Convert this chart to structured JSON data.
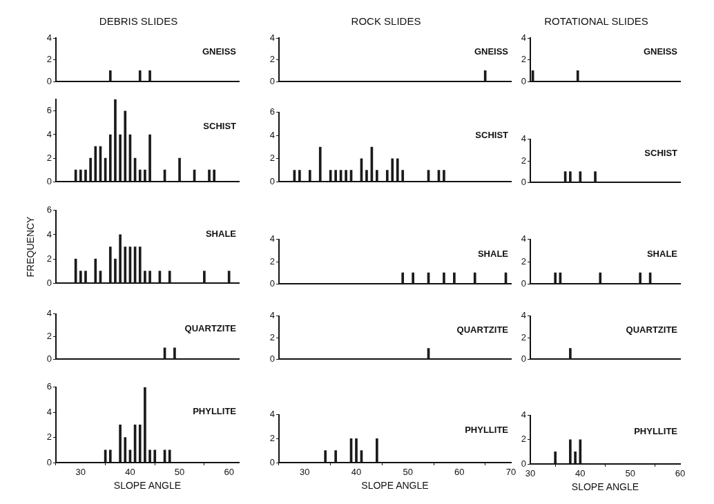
{
  "chart_data": [
    {
      "type": "bar",
      "title": "DEBRIS SLIDES",
      "annotations": [
        "GNEISS"
      ],
      "x": [
        36,
        42,
        44
      ],
      "values": [
        1,
        1,
        1
      ],
      "color": "#1a1a1a",
      "xlim": [
        25,
        62
      ],
      "ylim": [
        0,
        4
      ],
      "yticks": [
        0,
        2,
        4
      ],
      "tick_labels": "y"
    },
    {
      "type": "bar",
      "title": "ROCK SLIDES",
      "annotations": [
        "GNEISS"
      ],
      "x": [
        65
      ],
      "values": [
        1
      ],
      "color": "#1a1a1a",
      "xlim": [
        25,
        70
      ],
      "ylim": [
        0,
        4
      ],
      "yticks": [
        0,
        2,
        4
      ],
      "tick_labels": "y"
    },
    {
      "type": "bar",
      "title": "ROTATIONAL SLIDES",
      "annotations": [
        "GNEISS"
      ],
      "x": [
        30.5,
        39.5
      ],
      "values": [
        1,
        1
      ],
      "color": "#1a1a1a",
      "xlim": [
        30,
        60
      ],
      "ylim": [
        0,
        4
      ],
      "yticks": [
        0,
        2,
        4
      ],
      "tick_labels": "y"
    },
    {
      "type": "bar",
      "annotations": [
        "SCHIST"
      ],
      "x": [
        29,
        30,
        31,
        32,
        33,
        34,
        35,
        36,
        37,
        38,
        39,
        40,
        41,
        42,
        43,
        44,
        47,
        50,
        53,
        56,
        57
      ],
      "values": [
        1,
        1,
        1,
        2,
        3,
        3,
        2,
        4,
        7,
        4,
        6,
        4,
        2,
        1,
        1,
        4,
        1,
        2,
        1,
        1,
        1
      ],
      "color": "#1a1a1a",
      "xlim": [
        25,
        62
      ],
      "ylim": [
        0,
        7
      ],
      "yticks": [
        0,
        2,
        4,
        6
      ],
      "tick_labels": "y"
    },
    {
      "type": "bar",
      "annotations": [
        "SCHIST"
      ],
      "x": [
        28,
        29,
        31,
        33,
        35,
        36,
        37,
        38,
        39,
        41,
        42,
        43,
        44,
        46,
        47,
        48,
        49,
        54,
        56,
        57
      ],
      "values": [
        1,
        1,
        1,
        3,
        1,
        1,
        1,
        1,
        1,
        2,
        1,
        3,
        1,
        1,
        2,
        2,
        1,
        1,
        1,
        1
      ],
      "color": "#1a1a1a",
      "xlim": [
        25,
        70
      ],
      "ylim": [
        0,
        6
      ],
      "yticks": [
        0,
        2,
        4,
        6
      ],
      "tick_labels": "y"
    },
    {
      "type": "bar",
      "annotations": [
        "SCHIST"
      ],
      "x": [
        37,
        38,
        40,
        43
      ],
      "values": [
        1,
        1,
        1,
        1
      ],
      "color": "#1a1a1a",
      "xlim": [
        30,
        60
      ],
      "ylim": [
        0,
        4
      ],
      "yticks": [
        0,
        2,
        4
      ],
      "tick_labels": "y"
    },
    {
      "type": "bar",
      "ylabel": "FREQUENCY",
      "annotations": [
        "SHALE"
      ],
      "x": [
        29,
        30,
        31,
        33,
        34,
        36,
        37,
        38,
        39,
        40,
        41,
        42,
        43,
        44,
        46,
        48,
        55,
        60
      ],
      "values": [
        2,
        1,
        1,
        2,
        1,
        3,
        2,
        4,
        3,
        3,
        3,
        3,
        1,
        1,
        1,
        1,
        1,
        1
      ],
      "color": "#1a1a1a",
      "xlim": [
        25,
        62
      ],
      "ylim": [
        0,
        6
      ],
      "yticks": [
        0,
        2,
        4,
        6
      ],
      "tick_labels": "y"
    },
    {
      "type": "bar",
      "annotations": [
        "SHALE"
      ],
      "x": [
        49,
        51,
        54,
        57,
        59,
        63,
        69
      ],
      "values": [
        1,
        1,
        1,
        1,
        1,
        1,
        1
      ],
      "color": "#1a1a1a",
      "xlim": [
        25,
        70
      ],
      "ylim": [
        0,
        4
      ],
      "yticks": [
        0,
        2,
        4
      ],
      "tick_labels": "y"
    },
    {
      "type": "bar",
      "annotations": [
        "SHALE"
      ],
      "x": [
        35,
        36,
        44,
        52,
        54
      ],
      "values": [
        1,
        1,
        1,
        1,
        1
      ],
      "color": "#1a1a1a",
      "xlim": [
        30,
        60
      ],
      "ylim": [
        0,
        4
      ],
      "yticks": [
        0,
        2,
        4
      ],
      "tick_labels": "y"
    },
    {
      "type": "bar",
      "annotations": [
        "QUARTZITE"
      ],
      "x": [
        47,
        49
      ],
      "values": [
        1,
        1
      ],
      "color": "#1a1a1a",
      "xlim": [
        25,
        62
      ],
      "ylim": [
        0,
        4
      ],
      "yticks": [
        0,
        2,
        4
      ],
      "tick_labels": "y"
    },
    {
      "type": "bar",
      "annotations": [
        "QUARTZITE"
      ],
      "x": [
        54
      ],
      "values": [
        1
      ],
      "color": "#1a1a1a",
      "xlim": [
        25,
        70
      ],
      "ylim": [
        0,
        4
      ],
      "yticks": [
        0,
        2,
        4
      ],
      "tick_labels": "y"
    },
    {
      "type": "bar",
      "annotations": [
        "QUARTZITE"
      ],
      "x": [
        38
      ],
      "values": [
        1
      ],
      "color": "#1a1a1a",
      "xlim": [
        30,
        60
      ],
      "ylim": [
        0,
        4
      ],
      "yticks": [
        0,
        2,
        4
      ],
      "tick_labels": "y"
    },
    {
      "type": "bar",
      "xlabel": "SLOPE ANGLE",
      "annotations": [
        "PHYLLITE"
      ],
      "x": [
        35,
        36,
        38,
        39,
        40,
        41,
        42,
        43,
        44,
        45,
        47,
        48
      ],
      "values": [
        1,
        1,
        3,
        2,
        1,
        3,
        3,
        6,
        1,
        1,
        1,
        1
      ],
      "color": "#1a1a1a",
      "xlim": [
        25,
        62
      ],
      "ylim": [
        0,
        6
      ],
      "yticks": [
        0,
        2,
        4,
        6
      ],
      "xticks": [
        30,
        40,
        50,
        60
      ]
    },
    {
      "type": "bar",
      "xlabel": "SLOPE ANGLE",
      "annotations": [
        "PHYLLITE"
      ],
      "x": [
        34,
        36,
        39,
        40,
        41,
        44
      ],
      "values": [
        1,
        1,
        2,
        2,
        1,
        2
      ],
      "color": "#1a1a1a",
      "xlim": [
        25,
        70
      ],
      "ylim": [
        0,
        4
      ],
      "yticks": [
        0,
        2,
        4
      ],
      "xticks": [
        30,
        40,
        50,
        60,
        70
      ]
    },
    {
      "type": "bar",
      "xlabel": "SLOPE ANGLE",
      "annotations": [
        "PHYLLITE"
      ],
      "x": [
        35,
        38,
        39,
        40
      ],
      "values": [
        1,
        2,
        1,
        2
      ],
      "color": "#1a1a1a",
      "xlim": [
        30,
        60
      ],
      "ylim": [
        0,
        4
      ],
      "yticks": [
        0,
        2,
        4
      ],
      "xticks": [
        30,
        40,
        50,
        60
      ]
    }
  ]
}
